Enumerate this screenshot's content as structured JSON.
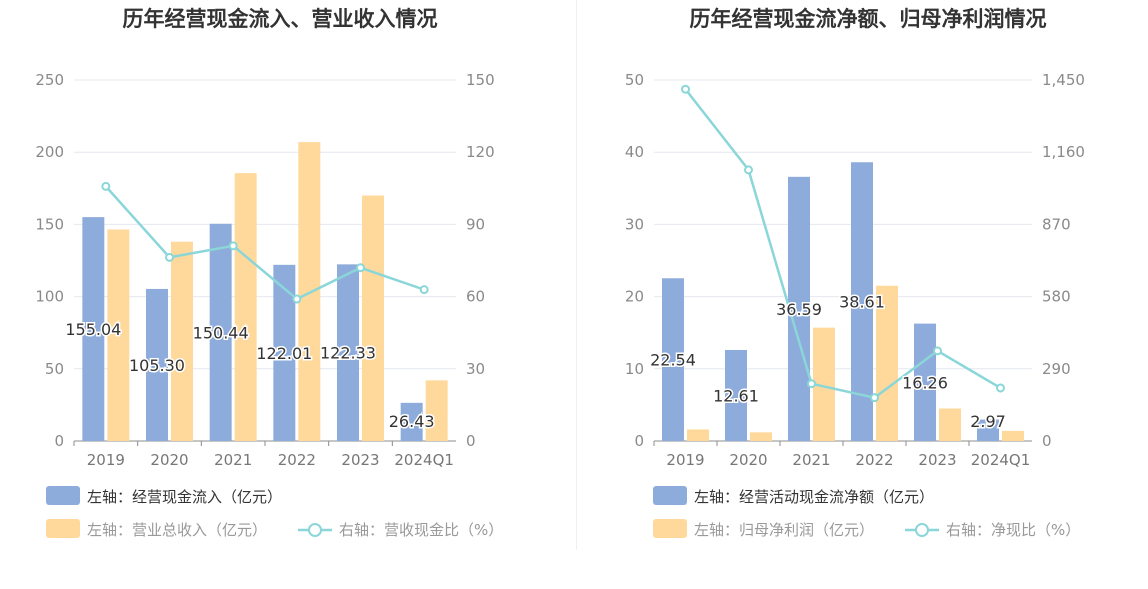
{
  "chart_data": [
    {
      "type": "bar",
      "title": "历年经营现金流入、营业收入情况",
      "categories": [
        "2019",
        "2020",
        "2021",
        "2022",
        "2023",
        "2024Q1"
      ],
      "left_axis": {
        "ticks": [
          "0",
          "50",
          "100",
          "150",
          "200",
          "250"
        ],
        "ylim": [
          0,
          250
        ]
      },
      "right_axis": {
        "ticks": [
          "0",
          "30",
          "60",
          "90",
          "120",
          "150"
        ],
        "ylim": [
          0,
          150
        ]
      },
      "series": [
        {
          "name": "左轴：经营现金流入（亿元）",
          "axis": "left",
          "kind": "bar",
          "color": "#8eacdb",
          "values": [
            155.04,
            105.3,
            150.44,
            122.01,
            122.33,
            26.43
          ],
          "labels": [
            "155.04",
            "105.30",
            "150.44",
            "122.01",
            "122.33",
            "26.43"
          ]
        },
        {
          "name": "左轴：营业总收入（亿元）",
          "axis": "left",
          "kind": "bar",
          "color": "#ffd99c",
          "values": [
            146.5,
            138.0,
            185.5,
            207.0,
            170.0,
            42.0
          ]
        },
        {
          "name": "右轴：营收现金比（%）",
          "axis": "right",
          "kind": "line",
          "color": "#8ad6d8",
          "values": [
            105.8,
            76.3,
            81.1,
            59.0,
            72.0,
            62.9
          ]
        }
      ]
    },
    {
      "type": "bar",
      "title": "历年经营现金流净额、归母净利润情况",
      "categories": [
        "2019",
        "2020",
        "2021",
        "2022",
        "2023",
        "2024Q1"
      ],
      "left_axis": {
        "ticks": [
          "0",
          "10",
          "20",
          "30",
          "40",
          "50"
        ],
        "ylim": [
          0,
          50
        ]
      },
      "right_axis": {
        "ticks": [
          "0",
          "290",
          "580",
          "870",
          "1,160",
          "1,450"
        ],
        "ylim": [
          0,
          1450
        ]
      },
      "series": [
        {
          "name": "左轴：经营活动现金流净额（亿元）",
          "axis": "left",
          "kind": "bar",
          "color": "#8eacdb",
          "values": [
            22.54,
            12.61,
            36.59,
            38.61,
            16.26,
            2.97
          ],
          "labels": [
            "22.54",
            "12.61",
            "36.59",
            "38.61",
            "16.26",
            "2.97"
          ]
        },
        {
          "name": "左轴：归母净利润（亿元）",
          "axis": "left",
          "kind": "bar",
          "color": "#ffd99c",
          "values": [
            1.6,
            1.2,
            15.7,
            21.5,
            4.5,
            1.4
          ]
        },
        {
          "name": "右轴：净现比（%）",
          "axis": "right",
          "kind": "line",
          "color": "#8ad6d8",
          "values": [
            1413,
            1089,
            230,
            174,
            362,
            213
          ]
        }
      ]
    }
  ]
}
